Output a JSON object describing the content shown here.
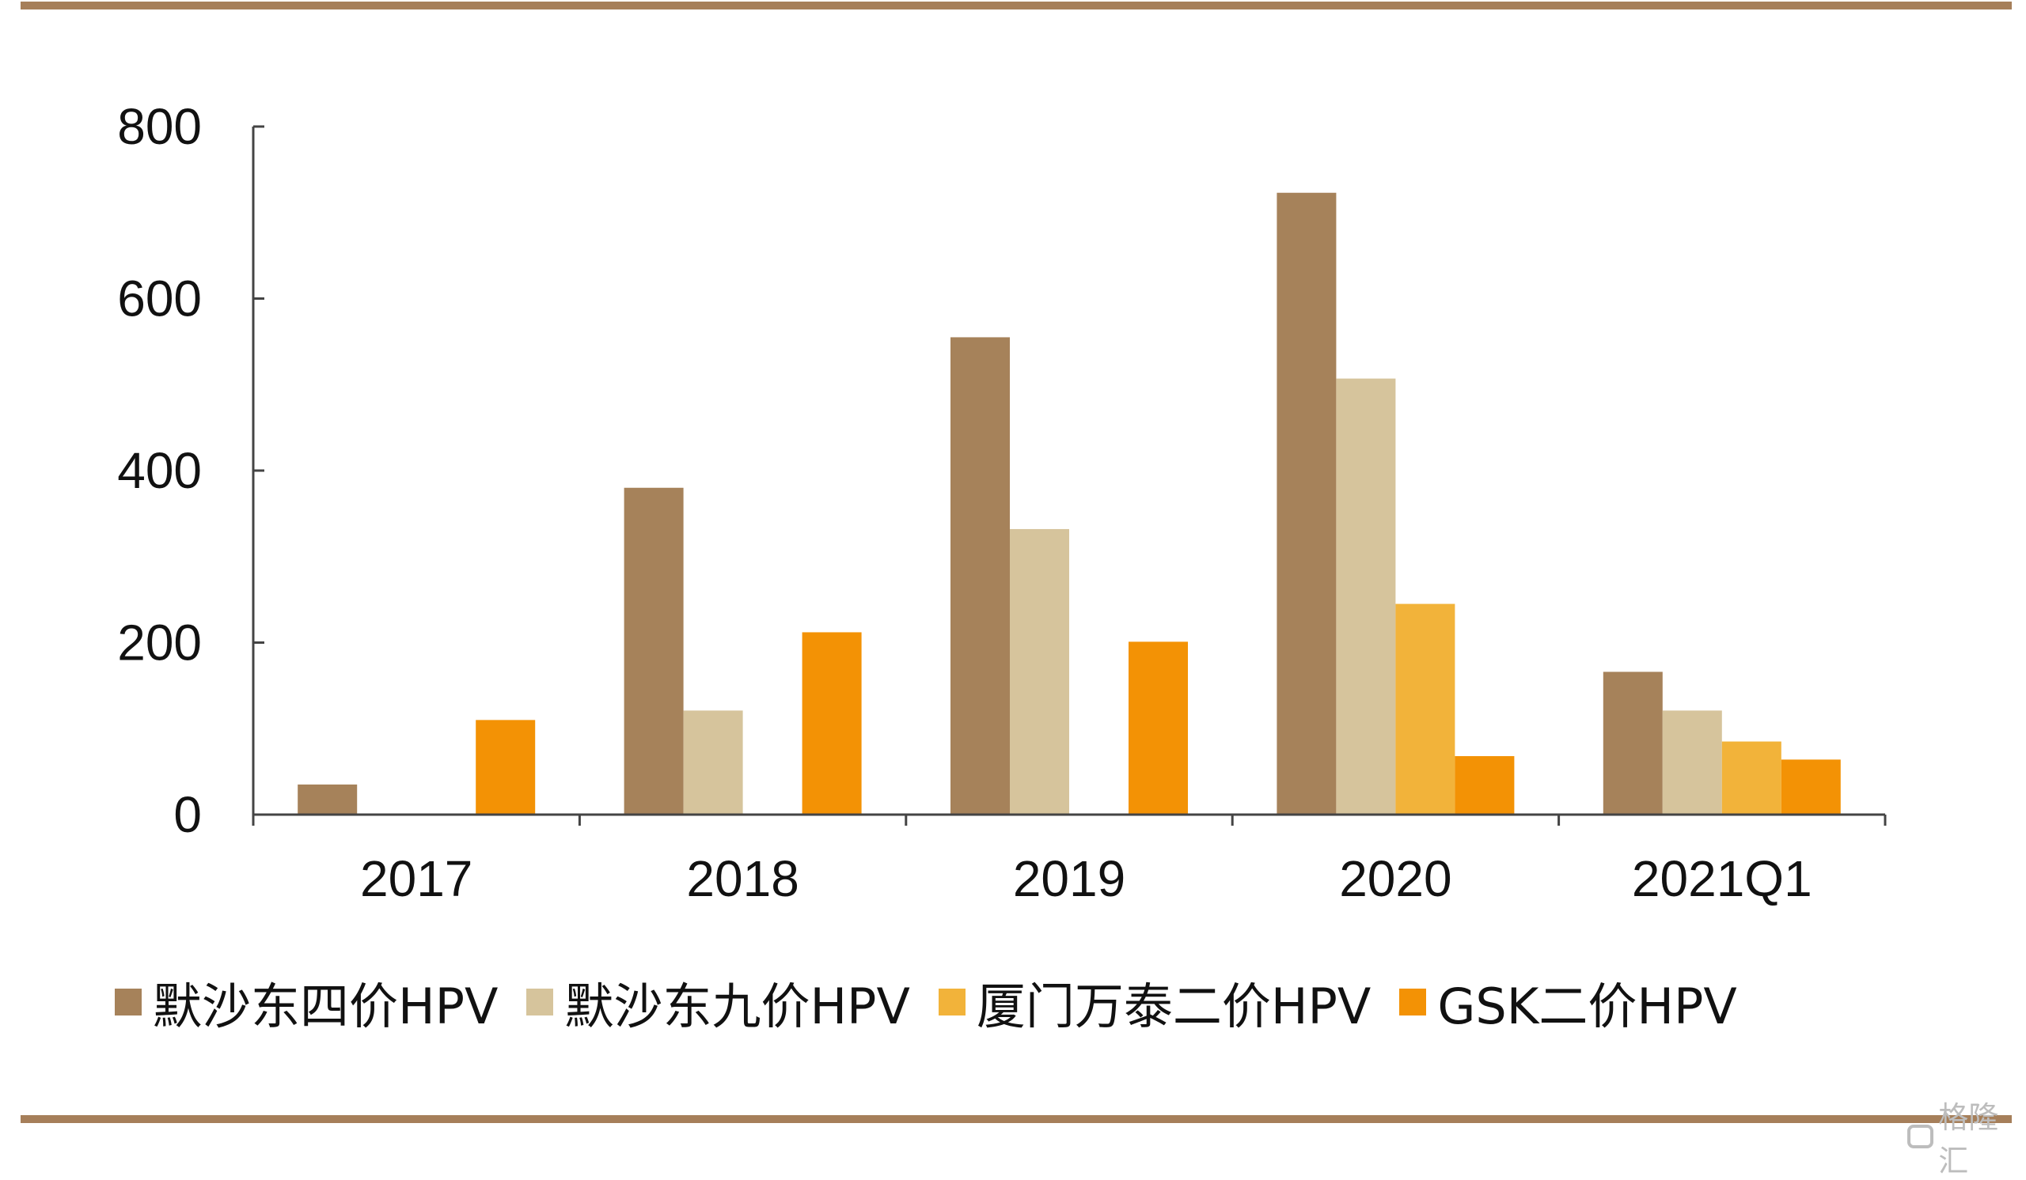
{
  "chart_data": {
    "type": "bar",
    "title": "",
    "xlabel": "",
    "ylabel": "",
    "categories": [
      "2017",
      "2018",
      "2019",
      "2020",
      "2021Q1"
    ],
    "series": [
      {
        "name": "默沙东四价HPV",
        "color": "#A6825A",
        "values": [
          35,
          380,
          555,
          723,
          166
        ]
      },
      {
        "name": "默沙东九价HPV",
        "color": "#D6C49C",
        "values": [
          0,
          121,
          332,
          507,
          121
        ]
      },
      {
        "name": "厦门万泰二价HPV",
        "color": "#F2B33A",
        "values": [
          0,
          0,
          0,
          245,
          85
        ]
      },
      {
        "name": "GSK二价HPV",
        "color": "#F39205",
        "values": [
          110,
          212,
          201,
          68,
          64
        ]
      }
    ],
    "ylim": [
      0,
      800
    ],
    "yticks": [
      0,
      200,
      400,
      600,
      800
    ],
    "grid": false,
    "legend_position": "bottom"
  },
  "watermark": {
    "text": "格隆汇",
    "icon": "gelonghui-logo-icon"
  }
}
